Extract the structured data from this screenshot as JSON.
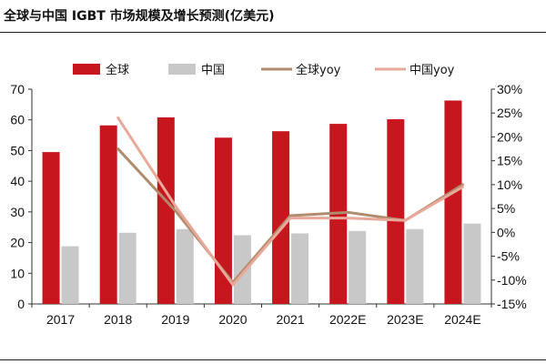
{
  "title": "全球与中国 IGBT 市场规模及增长预测(亿美元)",
  "colors": {
    "global_bar": "#c8161e",
    "china_bar": "#c8c8c8",
    "global_yoy": "#b08b6d",
    "china_yoy": "#e8a89a"
  },
  "chart_data": {
    "type": "bar",
    "title": "全球与中国 IGBT 市场规模及增长预测(亿美元)",
    "categories": [
      "2017",
      "2018",
      "2019",
      "2020",
      "2021",
      "2022E",
      "2023E",
      "2024E"
    ],
    "series": [
      {
        "name": "全球",
        "type": "bar",
        "axis": "left",
        "values": [
          49.5,
          58.2,
          60.8,
          54.2,
          56.3,
          58.7,
          60.2,
          66.3
        ]
      },
      {
        "name": "中国",
        "type": "bar",
        "axis": "left",
        "values": [
          18.8,
          23.2,
          24.4,
          22.4,
          23.0,
          23.8,
          24.4,
          26.2
        ]
      },
      {
        "name": "全球yoy",
        "type": "line",
        "axis": "right",
        "values": [
          null,
          17.5,
          4.5,
          -10.5,
          3.5,
          4.2,
          2.5,
          10.0
        ]
      },
      {
        "name": "中国yoy",
        "type": "line",
        "axis": "right",
        "values": [
          null,
          24.0,
          5.5,
          -11.0,
          3.0,
          3.0,
          2.5,
          9.5
        ]
      }
    ],
    "ylim_left": [
      0,
      70
    ],
    "ylim_right": [
      -15,
      30
    ],
    "yticks_left": [
      "0",
      "10",
      "20",
      "30",
      "40",
      "50",
      "60",
      "70"
    ],
    "yticks_right": [
      "-15%",
      "-10%",
      "-5%",
      "0%",
      "5%",
      "10%",
      "15%",
      "20%",
      "25%",
      "30%"
    ],
    "grid": false,
    "legend": "top"
  }
}
